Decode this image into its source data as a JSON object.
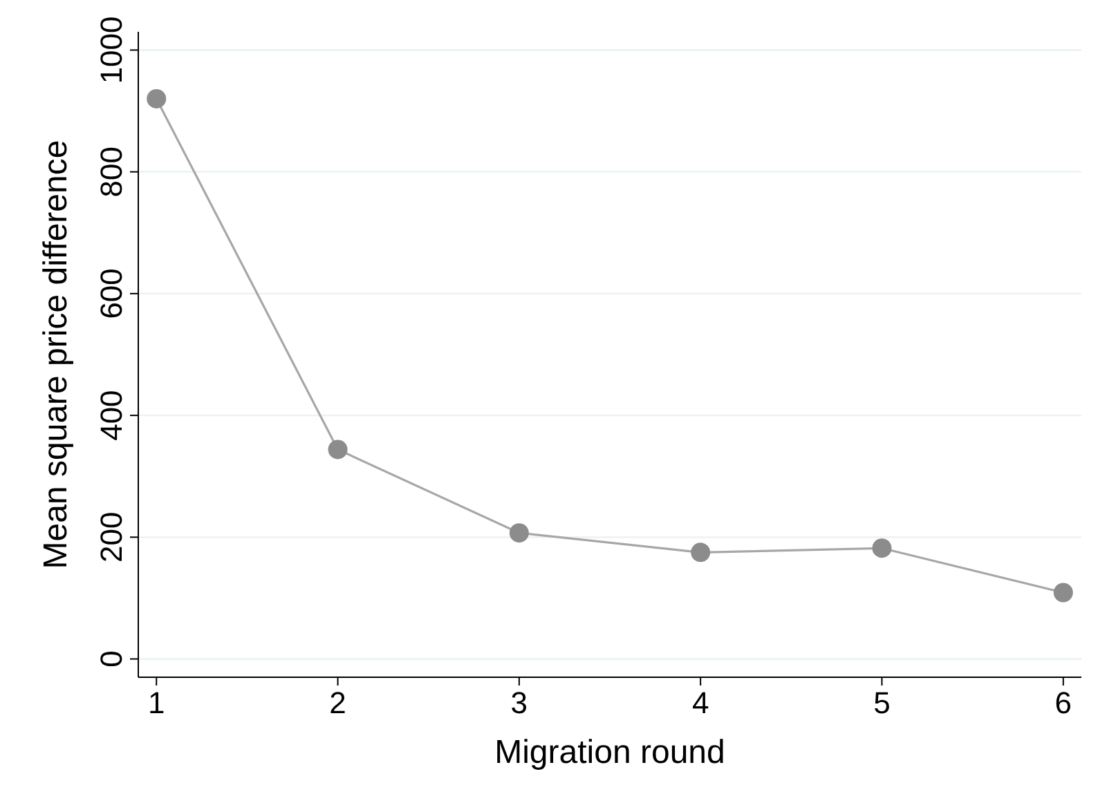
{
  "chart_data": {
    "type": "line",
    "xlabel": "Migration round",
    "ylabel": "Mean square price difference",
    "x": [
      1,
      2,
      3,
      4,
      5,
      6
    ],
    "series": [
      {
        "color": "#8c8c8c",
        "values": [
          920,
          344,
          207,
          175,
          182,
          109
        ]
      }
    ],
    "xlim": [
      0.9,
      6.1
    ],
    "xticks": [
      1,
      2,
      3,
      4,
      5,
      6
    ],
    "ylim": [
      -30,
      1030
    ],
    "yticks": [
      0,
      200,
      400,
      600,
      800,
      1000
    ],
    "grid": "y",
    "marker": "circle",
    "line_style": "solid"
  }
}
